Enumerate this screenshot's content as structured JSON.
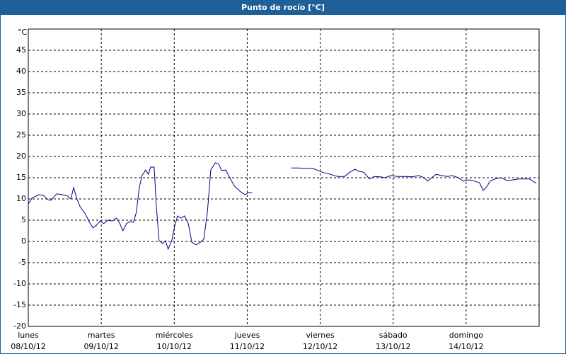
{
  "chart_data": {
    "type": "line",
    "title": "Punto de rocío [°C]",
    "y_unit": "°C",
    "xlim": [
      0,
      168
    ],
    "ylim": [
      -20,
      50
    ],
    "yticks": [
      -20,
      -15,
      -10,
      -5,
      0,
      5,
      10,
      15,
      20,
      25,
      30,
      35,
      40,
      45
    ],
    "xticks": [
      {
        "value": 0,
        "label": "lunes",
        "sublabel": "08/10/12"
      },
      {
        "value": 24,
        "label": "martes",
        "sublabel": "09/10/12"
      },
      {
        "value": 48,
        "label": "miércoles",
        "sublabel": "10/10/12"
      },
      {
        "value": 72,
        "label": "jueves",
        "sublabel": "11/10/12"
      },
      {
        "value": 96,
        "label": "viernes",
        "sublabel": "12/10/12"
      },
      {
        "value": 120,
        "label": "sábado",
        "sublabel": "13/10/12"
      },
      {
        "value": 144,
        "label": "domingo",
        "sublabel": "14/10/12"
      }
    ],
    "grid": true,
    "x": [
      0,
      1.2,
      3.5,
      5.1,
      6.5,
      7.5,
      9.3,
      11.2,
      12.9,
      14,
      14.9,
      15.9,
      17,
      18.7,
      20.3,
      21.3,
      22.4,
      23.6,
      24.8,
      26.2,
      27.6,
      29,
      30.1,
      31.1,
      32.3,
      33.4,
      34.6,
      35.5,
      36.5,
      37.4,
      38.6,
      39.5,
      40.2,
      41.4,
      42.1,
      43,
      44.2,
      45.1,
      46,
      47.2,
      48.1,
      49.1,
      50.2,
      51.4,
      52.6,
      53.8,
      55.2,
      56.6,
      57.7,
      58.9,
      60,
      61.5,
      62.6,
      63.6,
      65,
      65.9,
      67.8,
      69.6,
      71.3,
      72.4,
      73.6,
      80,
      86.5,
      88.8,
      91.1,
      93.5,
      95.3,
      97,
      99.3,
      101.7,
      104,
      105.6,
      107.5,
      108.7,
      110.3,
      112.2,
      113.8,
      115.7,
      117.3,
      119.2,
      121.5,
      123.9,
      126.2,
      128.5,
      130.2,
      131.3,
      132.7,
      134.1,
      136,
      137.9,
      139.5,
      141.4,
      143,
      144.9,
      146.8,
      148.4,
      149.6,
      150.7,
      151.9,
      153.8,
      155.6,
      157.5,
      159.4,
      161.2,
      163.1,
      164.8,
      165.9,
      167.1
    ],
    "series": [
      {
        "name": "Punto de rocío",
        "color": "#00008b",
        "values": [
          8.8,
          10.2,
          11,
          10.8,
          9.8,
          9.7,
          11.2,
          11,
          10.7,
          10,
          12.7,
          10.2,
          8.2,
          6.5,
          4.3,
          3.2,
          3.8,
          4.8,
          4.2,
          5,
          4.8,
          5.5,
          4.2,
          2.5,
          4.2,
          4.7,
          4.5,
          6.8,
          12.7,
          15.5,
          16.8,
          15.8,
          17.5,
          17.5,
          8.5,
          0.2,
          -0.5,
          0.2,
          -1.8,
          0.2,
          3.5,
          6,
          5.5,
          6,
          4.2,
          -0.2,
          -0.8,
          -0.2,
          0.5,
          6.8,
          16.8,
          18.5,
          18.2,
          16.7,
          16.8,
          15.5,
          13,
          11.8,
          11,
          11.5,
          11.5,
          null,
          17.3,
          17.3,
          17.2,
          17.2,
          16.7,
          16.2,
          15.8,
          15.3,
          15.3,
          16.2,
          17,
          16.5,
          16.3,
          14.7,
          15.3,
          15.2,
          15,
          15.5,
          15.3,
          15.3,
          15.2,
          15.5,
          15,
          14.2,
          15,
          15.8,
          15.5,
          15.3,
          15.5,
          15,
          14.2,
          14.5,
          14.2,
          13.8,
          12,
          12.8,
          14.2,
          14.8,
          15,
          14.3,
          14.5,
          14.7,
          14.7,
          14.7,
          14.2,
          13.7
        ]
      }
    ]
  }
}
